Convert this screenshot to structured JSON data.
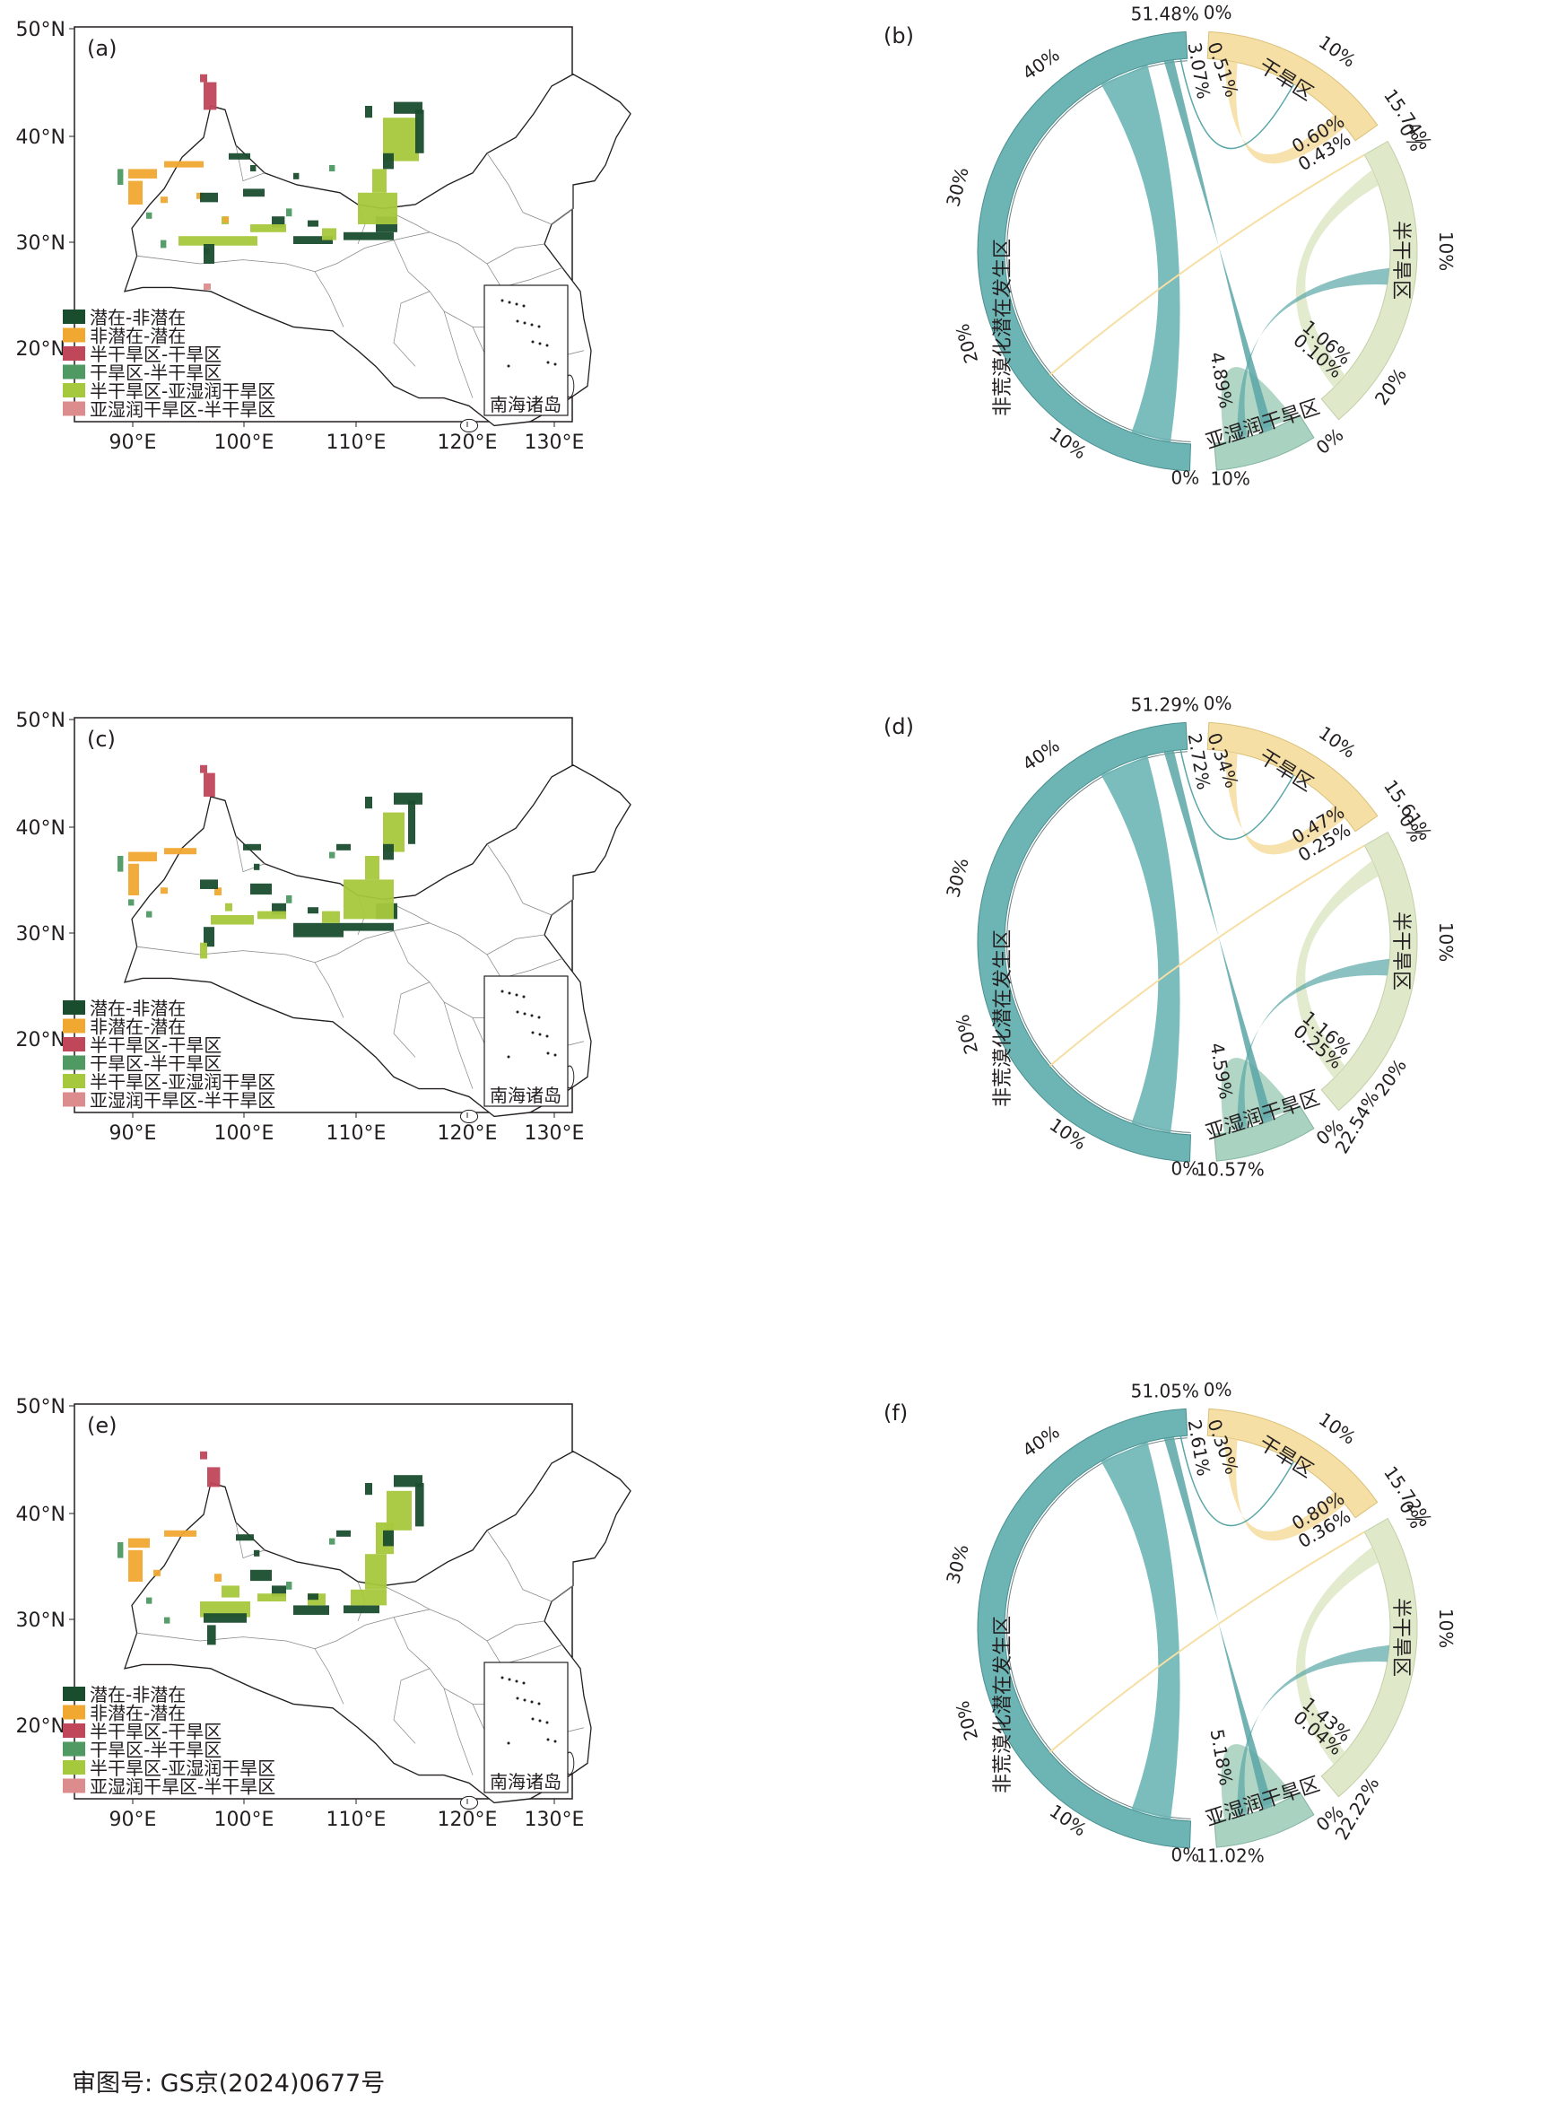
{
  "colors": {
    "potential_to_nonpotential": "#1a4d2e",
    "nonpotential_to_potential": "#f0a830",
    "semiarid_to_arid": "#c0465a",
    "arid_to_semiarid": "#4e9a62",
    "semiarid_to_subhumid": "#a6c83c",
    "subhumid_to_semiarid": "#dc8c8c",
    "teal": "#6db5b5",
    "tealDark": "#5aa6a6",
    "yellow": "#f6dfa4",
    "lightGreen": "#dfe9c9",
    "midGreen": "#a9d2c0"
  },
  "lat_labels": [
    "50°N",
    "40°N",
    "30°N",
    "20°N"
  ],
  "lon_labels": [
    "90°E",
    "100°E",
    "110°E",
    "120°E",
    "130°E"
  ],
  "inset_label": "南海诸岛",
  "legend": [
    {
      "label": "潜在-非潜在",
      "color_key": "potential_to_nonpotential"
    },
    {
      "label": "非潜在-潜在",
      "color_key": "nonpotential_to_potential"
    },
    {
      "label": "半干旱区-干旱区",
      "color_key": "semiarid_to_arid"
    },
    {
      "label": "干旱区-半干旱区",
      "color_key": "arid_to_semiarid"
    },
    {
      "label": "半干旱区-亚湿润干旱区",
      "color_key": "semiarid_to_subhumid"
    },
    {
      "label": "亚湿润干旱区-半干旱区",
      "color_key": "subhumid_to_semiarid"
    }
  ],
  "sector_names": {
    "big": "非荒漠化潜在发生区",
    "arid": "干旱区",
    "semi": "半干旱区",
    "sub": "亚湿润干旱区"
  },
  "panels": [
    {
      "map_label": "(a)",
      "chord_label": "(b)",
      "ticks": {
        "big_top": "51.48%",
        "big_40": "40%",
        "big_30": "30%",
        "big_20": "20%",
        "big_10": "10%",
        "big_0": "0%",
        "arid_0": "0%",
        "arid_10": "10%",
        "arid_end": "15.74%",
        "semi_0": "0%",
        "semi_10": "10%",
        "semi_20": "20%",
        "semi_end": "",
        "sub_0": "0%",
        "sub_end": "10%"
      },
      "flows": {
        "big_arid_a": "0.51%",
        "big_arid_b": "3.07%",
        "arid_semi_a": "0.60%",
        "arid_semi_b": "0.43%",
        "semi_sub_a": "1.06%",
        "semi_sub_b": "0.10%",
        "sub_big": "4.89%"
      }
    },
    {
      "map_label": "(c)",
      "chord_label": "(d)",
      "ticks": {
        "big_top": "51.29%",
        "big_40": "40%",
        "big_30": "30%",
        "big_20": "20%",
        "big_10": "10%",
        "big_0": "0%",
        "arid_0": "0%",
        "arid_10": "10%",
        "arid_end": "15.61%",
        "semi_0": "0%",
        "semi_10": "10%",
        "semi_20": "20%",
        "semi_end": "22.54%",
        "sub_0": "0%",
        "sub_end": "10.57%"
      },
      "flows": {
        "big_arid_a": "0.34%",
        "big_arid_b": "2.72%",
        "arid_semi_a": "0.47%",
        "arid_semi_b": "0.25%",
        "semi_sub_a": "1.16%",
        "semi_sub_b": "0.25%",
        "sub_big": "4.59%"
      }
    },
    {
      "map_label": "(e)",
      "chord_label": "(f)",
      "ticks": {
        "big_top": "51.05%",
        "big_40": "40%",
        "big_30": "30%",
        "big_20": "20%",
        "big_10": "10%",
        "big_0": "0%",
        "arid_0": "0%",
        "arid_10": "10%",
        "arid_end": "15.72%",
        "semi_0": "0%",
        "semi_10": "10%",
        "semi_20": "",
        "semi_end": "22.22%",
        "sub_0": "0%",
        "sub_end": "11.02%"
      },
      "flows": {
        "big_arid_a": "0.30%",
        "big_arid_b": "2.61%",
        "arid_semi_a": "0.80%",
        "arid_semi_b": "0.36%",
        "semi_sub_a": "1.43%",
        "semi_sub_b": "0.04%",
        "sub_big": "5.18%"
      }
    }
  ],
  "footer": "审图号: GS京(2024)0677号"
}
